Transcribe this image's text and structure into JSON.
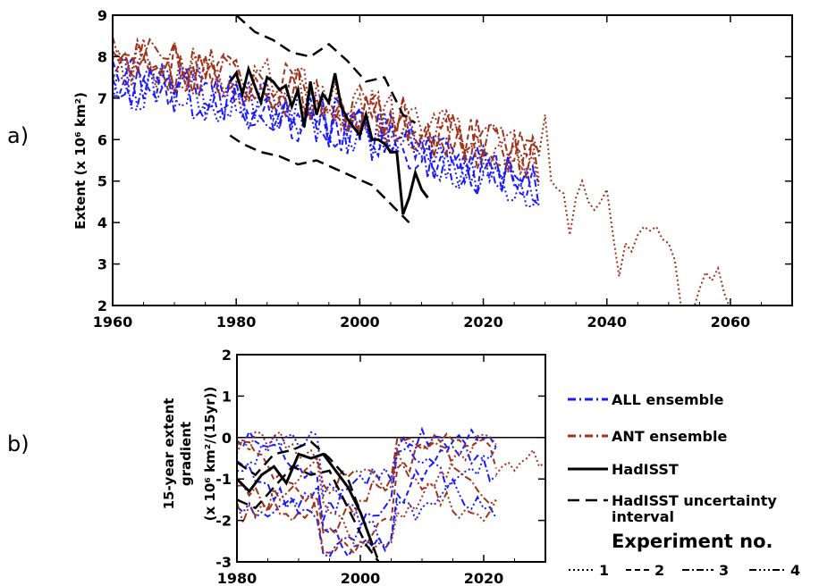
{
  "chart_data": [
    {
      "panel_label": "a)",
      "type": "line",
      "ylabel": "Extent (x 10⁶ km²)",
      "xlim": [
        1960,
        2070
      ],
      "ylim": [
        2,
        9
      ],
      "xticks": [
        1960,
        1980,
        2000,
        2020,
        2040,
        2060
      ],
      "yticks": [
        2,
        3,
        4,
        5,
        6,
        7,
        8,
        9
      ],
      "series": [
        {
          "group": "HadISST",
          "style": "solid",
          "x": [
            1979,
            1980,
            1981,
            1982,
            1983,
            1984,
            1985,
            1986,
            1987,
            1988,
            1989,
            1990,
            1991,
            1992,
            1993,
            1994,
            1995,
            1996,
            1997,
            1998,
            1999,
            2000,
            2001,
            2002,
            2003,
            2004,
            2005,
            2006,
            2007,
            2008,
            2009,
            2010,
            2011
          ],
          "y": [
            7.4,
            7.6,
            7.1,
            7.7,
            7.3,
            6.9,
            7.5,
            7.4,
            7.2,
            7.3,
            6.8,
            7.2,
            6.3,
            7.4,
            6.6,
            7.1,
            6.9,
            7.6,
            6.8,
            6.5,
            6.3,
            6.1,
            6.6,
            6.0,
            6.0,
            5.9,
            5.7,
            5.7,
            4.2,
            4.6,
            5.2,
            4.8,
            4.6
          ]
        },
        {
          "group": "HadISST uncertainty upper",
          "style": "dashed",
          "x": [
            1980,
            1983,
            1986,
            1989,
            1992,
            1995,
            1998,
            2001,
            2004,
            2007,
            2009
          ],
          "y": [
            9.0,
            8.6,
            8.4,
            8.1,
            8.0,
            8.3,
            7.9,
            7.4,
            7.5,
            6.6,
            6.4
          ]
        },
        {
          "group": "HadISST uncertainty lower",
          "style": "dashed",
          "x": [
            1979,
            1981,
            1984,
            1987,
            1990,
            1993,
            1996,
            1999,
            2002,
            2004,
            2006,
            2008
          ],
          "y": [
            6.1,
            5.9,
            5.7,
            5.6,
            5.4,
            5.5,
            5.3,
            5.1,
            4.9,
            4.6,
            4.3,
            4.0
          ]
        }
      ],
      "ensembles": [
        {
          "name": "ALL ensemble",
          "color": "#1a1aff",
          "members": 4,
          "x_range": [
            1960,
            2029
          ],
          "start_level": 7.4,
          "end_level": 4.8
        },
        {
          "name": "ANT ensemble",
          "color": "#a0321a",
          "members": 4,
          "x_range": [
            1960,
            2029
          ],
          "start_level": 7.9,
          "end_level": 5.4,
          "extension_experiment": 1,
          "extension_x": [
            2029,
            2030,
            2031,
            2032,
            2033,
            2034,
            2035,
            2036,
            2037,
            2038,
            2039,
            2040,
            2041,
            2042,
            2043,
            2044,
            2045,
            2046,
            2047,
            2048,
            2049,
            2050,
            2051,
            2052,
            2053,
            2054,
            2055,
            2056,
            2057,
            2058,
            2059,
            2060
          ],
          "extension_y": [
            5.6,
            6.6,
            5.0,
            4.8,
            4.7,
            3.7,
            4.6,
            5.0,
            4.5,
            4.3,
            4.5,
            4.8,
            3.7,
            2.7,
            3.5,
            3.3,
            3.7,
            3.9,
            3.8,
            3.9,
            3.6,
            3.5,
            3.1,
            2.0,
            1.8,
            1.9,
            2.4,
            2.8,
            2.6,
            2.9,
            2.3,
            1.9
          ]
        }
      ]
    },
    {
      "panel_label": "b)",
      "type": "line",
      "ylabel_line1": "15-year extent",
      "ylabel_line2": "gradient",
      "ylabel_line3": "(x 10⁶ km²/(15yr))",
      "xlim": [
        1980,
        2030
      ],
      "ylim": [
        -3,
        2
      ],
      "xticks": [
        1980,
        2000,
        2020
      ],
      "yticks": [
        -3,
        -2,
        -1,
        0,
        1,
        2
      ],
      "zero_line": true,
      "series": [
        {
          "group": "HadISST",
          "style": "solid",
          "x": [
            1980,
            1982,
            1984,
            1986,
            1988,
            1990,
            1992,
            1994,
            1996,
            1998,
            2000,
            2002
          ],
          "y": [
            -1.0,
            -1.3,
            -0.9,
            -0.7,
            -1.1,
            -0.4,
            -0.5,
            -0.4,
            -0.8,
            -1.2,
            -1.8,
            -2.6
          ]
        },
        {
          "group": "HadISST uncertainty 1",
          "style": "dashed",
          "x": [
            1980,
            1983,
            1986,
            1989,
            1992,
            1995,
            1998,
            2001,
            2003
          ],
          "y": [
            -0.6,
            -0.9,
            -0.4,
            -0.3,
            -0.1,
            -0.5,
            -1.0,
            -2.2,
            -3.0
          ]
        },
        {
          "group": "HadISST uncertainty 2",
          "style": "dashed",
          "x": [
            1980,
            1983,
            1986,
            1989,
            1992,
            1995,
            1998,
            2001,
            2003
          ],
          "y": [
            -1.5,
            -1.7,
            -1.2,
            -0.7,
            -0.9,
            -0.8,
            -1.7,
            -2.6,
            -3.0
          ]
        }
      ],
      "ensembles": [
        {
          "name": "ALL ensemble",
          "color": "#1a1aff",
          "members": 4,
          "x_range": [
            1980,
            2022
          ]
        },
        {
          "name": "ANT ensemble",
          "color": "#a0321a",
          "members": 4,
          "x_range": [
            1980,
            2022
          ],
          "extension_experiment": 1,
          "extension_x": [
            2022,
            2023,
            2024,
            2025,
            2026,
            2027,
            2028,
            2029,
            2030
          ],
          "extension_y": [
            -0.9,
            -0.7,
            -0.6,
            -0.8,
            -0.6,
            -0.5,
            -0.3,
            -0.7,
            -0.6
          ]
        }
      ]
    }
  ],
  "legend": {
    "entries": [
      {
        "label": "ALL ensemble",
        "color": "#1a1aff",
        "style": "dashdot"
      },
      {
        "label": "ANT ensemble",
        "color": "#a0321a",
        "style": "dashdot"
      },
      {
        "label": "HadISST",
        "color": "#000000",
        "style": "solid"
      },
      {
        "label_line1": "HadISST uncertainty",
        "label_line2": "interval",
        "color": "#000000",
        "style": "dashed"
      }
    ],
    "experiments_title": "Experiment no.",
    "experiments": [
      {
        "label": "1",
        "style": "dotted"
      },
      {
        "label": "2",
        "style": "dashed"
      },
      {
        "label": "3",
        "style": "dashdot"
      },
      {
        "label": "4",
        "style": "dashdotdotdot"
      }
    ]
  }
}
